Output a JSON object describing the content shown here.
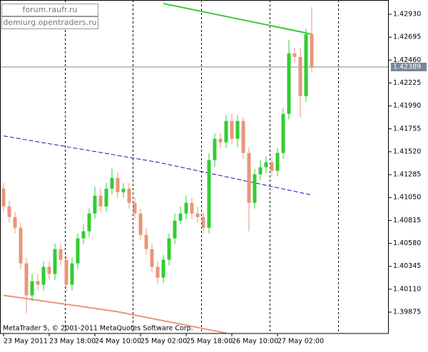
{
  "chart_data": {
    "type": "candlestick",
    "watermarks": [
      "forum.raufr.ru",
      "demiurg.opentraders.ru"
    ],
    "footer": "MetaTrader 5, © 2001-2011 MetaQuotes Software Corp.",
    "categories": [
      "23 May 2011",
      null,
      null,
      null,
      null,
      null,
      null,
      null,
      "23 May 18:00",
      null,
      null,
      null,
      null,
      null,
      null,
      null,
      "24 May 10:00",
      null,
      null,
      null,
      null,
      null,
      null,
      null,
      "25 May 02:00",
      null,
      null,
      null,
      null,
      null,
      null,
      null,
      "25 May 18:00",
      null,
      null,
      null,
      null,
      null,
      null,
      null,
      "26 May 10:00",
      null,
      null,
      null,
      null,
      null,
      null,
      null,
      "27 May 02:00",
      null,
      null,
      null,
      null,
      null,
      null
    ],
    "candles": [
      [
        1.41141,
        1.412,
        1.40901,
        1.40959
      ],
      [
        1.40959,
        1.41017,
        1.40791,
        1.4085
      ],
      [
        1.4085,
        1.40901,
        1.40682,
        1.4074
      ],
      [
        1.4074,
        1.40791,
        1.40317,
        1.40375
      ],
      [
        1.40375,
        1.40434,
        1.39864,
        1.40047
      ],
      [
        1.40047,
        1.40266,
        1.39988,
        1.40193
      ],
      [
        1.40193,
        1.40266,
        1.40098,
        1.40156
      ],
      [
        1.40156,
        1.40397,
        1.40098,
        1.40339
      ],
      [
        1.40339,
        1.40397,
        1.40207,
        1.40266
      ],
      [
        1.40266,
        1.4058,
        1.40207,
        1.40521
      ],
      [
        1.40521,
        1.4058,
        1.40353,
        1.40412
      ],
      [
        1.40412,
        1.40463,
        1.40083,
        1.40156
      ],
      [
        1.40156,
        1.40434,
        1.40098,
        1.40375
      ],
      [
        1.40375,
        1.40682,
        1.40317,
        1.40631
      ],
      [
        1.40631,
        1.40777,
        1.40572,
        1.40704
      ],
      [
        1.40704,
        1.40937,
        1.40645,
        1.40886
      ],
      [
        1.40886,
        1.41163,
        1.40828,
        1.41069
      ],
      [
        1.41069,
        1.41141,
        1.40901,
        1.40959
      ],
      [
        1.40959,
        1.412,
        1.40901,
        1.41141
      ],
      [
        1.41141,
        1.41346,
        1.41083,
        1.41251
      ],
      [
        1.41251,
        1.4131,
        1.41047,
        1.41105
      ],
      [
        1.41105,
        1.412,
        1.41047,
        1.41141
      ],
      [
        1.41141,
        1.412,
        1.40937,
        1.40996
      ],
      [
        1.40996,
        1.41054,
        1.40828,
        1.40886
      ],
      [
        1.40886,
        1.40937,
        1.40609,
        1.40667
      ],
      [
        1.40667,
        1.4074,
        1.40463,
        1.40521
      ],
      [
        1.40521,
        1.4058,
        1.4028,
        1.40339
      ],
      [
        1.40339,
        1.40397,
        1.40156,
        1.40229
      ],
      [
        1.40229,
        1.40463,
        1.40171,
        1.40412
      ],
      [
        1.40412,
        1.40682,
        1.40353,
        1.40631
      ],
      [
        1.40631,
        1.40886,
        1.40572,
        1.40813
      ],
      [
        1.40813,
        1.40959,
        1.40777,
        1.40886
      ],
      [
        1.40886,
        1.41069,
        1.40828,
        1.40996
      ],
      [
        1.40996,
        1.41047,
        1.40828,
        1.40886
      ],
      [
        1.40886,
        1.40959,
        1.40791,
        1.4085
      ],
      [
        1.4085,
        1.40901,
        1.40682,
        1.4074
      ],
      [
        1.4074,
        1.41507,
        1.40682,
        1.41434
      ],
      [
        1.41434,
        1.41711,
        1.41361,
        1.41653
      ],
      [
        1.41653,
        1.41711,
        1.41558,
        1.41616
      ],
      [
        1.41616,
        1.41893,
        1.41558,
        1.41835
      ],
      [
        1.41835,
        1.41908,
        1.41594,
        1.41653
      ],
      [
        1.41653,
        1.41893,
        1.41565,
        1.41835
      ],
      [
        1.41835,
        1.41871,
        1.41448,
        1.41507
      ],
      [
        1.41507,
        1.41565,
        1.40704,
        1.40996
      ],
      [
        1.40996,
        1.41346,
        1.40937,
        1.41288
      ],
      [
        1.41288,
        1.41434,
        1.41229,
        1.41361
      ],
      [
        1.41361,
        1.4147,
        1.41302,
        1.41412
      ],
      [
        1.41412,
        1.4147,
        1.41266,
        1.41324
      ],
      [
        1.41324,
        1.41558,
        1.41266,
        1.41507
      ],
      [
        1.41507,
        1.41966,
        1.41448,
        1.41908
      ],
      [
        1.41908,
        1.42667,
        1.4185,
        1.42528
      ],
      [
        1.42528,
        1.42587,
        1.42434,
        1.42492
      ],
      [
        1.42492,
        1.42587,
        1.41871,
        1.4209
      ],
      [
        1.4209,
        1.42784,
        1.42032,
        1.42726
      ],
      [
        1.42726,
        1.43003,
        1.42331,
        1.4239
      ]
    ],
    "up_color": "#32cd32",
    "down_color": "#e9967a",
    "indicators": [
      {
        "color": "#3cc83c",
        "dash": false,
        "x": [
          28,
          54
        ],
        "values": [
          1.4304,
          1.42726
        ]
      },
      {
        "color": "#1a1aaa",
        "dash": true,
        "x": [
          0,
          27,
          54
        ],
        "values": [
          1.41682,
          1.41412,
          1.41076
        ]
      },
      {
        "color": "#e9967a",
        "dash": false,
        "x": [
          0,
          20,
          39
        ],
        "values": [
          1.40047,
          1.39879,
          1.3966
        ]
      }
    ],
    "current_price": 1.42389,
    "ylim": [
      1.39656,
      1.43076
    ],
    "yticks": [
      {
        "value": 1.4293,
        "label": "1.42930"
      },
      1.42695,
      {
        "value": 1.4246,
        "label": "1.42460"
      },
      1.42225,
      {
        "value": 1.4199,
        "label": "1.41990"
      },
      1.41755,
      {
        "value": 1.4152,
        "label": "1.41520"
      },
      1.41285,
      {
        "value": 1.4105,
        "label": "1.41050"
      },
      1.40815,
      {
        "value": 1.4058,
        "label": "1.40580"
      },
      1.40345,
      {
        "value": 1.4011,
        "label": "1.40110"
      },
      1.39875
    ]
  }
}
